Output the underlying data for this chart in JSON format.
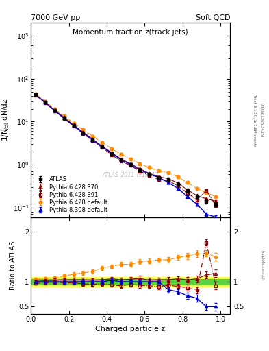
{
  "title_top": "7000 GeV pp",
  "title_right": "Soft QCD",
  "plot_title": "Momentum fraction z(track jets)",
  "ylabel_main": "1/N$_{jet}$ dN/dz",
  "ylabel_ratio": "Ratio to ATLAS",
  "xlabel": "Charged particle z",
  "watermark": "ATLAS_2011_I919017",
  "rivet_label": "Rivet 3.1.10, ≥ 1.6M events",
  "arxiv_label": "[arXiv:1306.3436]",
  "mcplots_label": "mcplots.cern.ch",
  "z_values": [
    0.025,
    0.075,
    0.125,
    0.175,
    0.225,
    0.275,
    0.325,
    0.375,
    0.425,
    0.475,
    0.525,
    0.575,
    0.625,
    0.675,
    0.725,
    0.775,
    0.825,
    0.875,
    0.925,
    0.975
  ],
  "atlas_y": [
    42.0,
    28.0,
    18.0,
    12.0,
    8.0,
    5.5,
    3.8,
    2.6,
    1.8,
    1.3,
    1.0,
    0.75,
    0.6,
    0.5,
    0.45,
    0.35,
    0.25,
    0.18,
    0.14,
    0.12
  ],
  "atlas_yerr": [
    2.0,
    1.5,
    1.0,
    0.7,
    0.5,
    0.35,
    0.25,
    0.18,
    0.12,
    0.1,
    0.08,
    0.06,
    0.05,
    0.04,
    0.04,
    0.03,
    0.025,
    0.02,
    0.015,
    0.015
  ],
  "py6_370_y": [
    42.5,
    28.5,
    18.5,
    12.5,
    8.3,
    5.7,
    3.9,
    2.7,
    1.9,
    1.35,
    1.05,
    0.8,
    0.62,
    0.52,
    0.47,
    0.37,
    0.26,
    0.19,
    0.16,
    0.14
  ],
  "py6_370_ratio": [
    1.01,
    1.02,
    1.03,
    1.04,
    1.04,
    1.04,
    1.03,
    1.04,
    1.06,
    1.04,
    1.05,
    1.07,
    1.03,
    1.04,
    1.04,
    1.06,
    1.04,
    1.06,
    1.14,
    1.17
  ],
  "py6_391_y": [
    41.0,
    27.5,
    17.8,
    11.8,
    7.8,
    5.3,
    3.6,
    2.5,
    1.7,
    1.2,
    0.95,
    0.7,
    0.55,
    0.45,
    0.42,
    0.32,
    0.22,
    0.15,
    0.25,
    0.11
  ],
  "py6_391_ratio": [
    0.97,
    0.98,
    0.99,
    0.98,
    0.98,
    0.96,
    0.95,
    0.96,
    0.94,
    0.92,
    0.95,
    0.93,
    0.92,
    0.9,
    0.93,
    0.91,
    0.88,
    0.83,
    1.79,
    0.92
  ],
  "py6_def_y": [
    44.0,
    30.0,
    19.5,
    13.5,
    9.2,
    6.5,
    4.6,
    3.3,
    2.35,
    1.75,
    1.35,
    1.05,
    0.85,
    0.72,
    0.65,
    0.52,
    0.38,
    0.28,
    0.22,
    0.18
  ],
  "py6_def_ratio": [
    1.05,
    1.07,
    1.08,
    1.12,
    1.15,
    1.18,
    1.21,
    1.27,
    1.31,
    1.35,
    1.35,
    1.4,
    1.42,
    1.44,
    1.44,
    1.49,
    1.52,
    1.56,
    1.57,
    1.5
  ],
  "py8_def_y": [
    42.0,
    28.0,
    18.0,
    12.0,
    8.0,
    5.5,
    3.8,
    2.6,
    1.85,
    1.3,
    1.0,
    0.75,
    0.6,
    0.5,
    0.38,
    0.28,
    0.18,
    0.12,
    0.07,
    0.06
  ],
  "py8_def_ratio": [
    1.0,
    1.0,
    1.0,
    1.0,
    1.0,
    1.0,
    1.0,
    1.0,
    1.03,
    1.0,
    1.0,
    1.0,
    1.0,
    1.0,
    0.84,
    0.8,
    0.72,
    0.67,
    0.5,
    0.5
  ],
  "green_band": 0.05,
  "yellow_band": 0.1,
  "color_atlas": "#000000",
  "color_py6_370": "#8b0000",
  "color_py6_391": "#8b0000",
  "color_py6_def": "#ff8c00",
  "color_py8_def": "#0000cd",
  "legend_entries": [
    "ATLAS",
    "Pythia 6.428 370",
    "Pythia 6.428 391",
    "Pythia 6.428 default",
    "Pythia 8.308 default"
  ],
  "ylim_main": [
    0.06,
    2000
  ],
  "ylim_ratio": [
    0.35,
    2.3
  ],
  "xlim": [
    0.0,
    1.05
  ]
}
